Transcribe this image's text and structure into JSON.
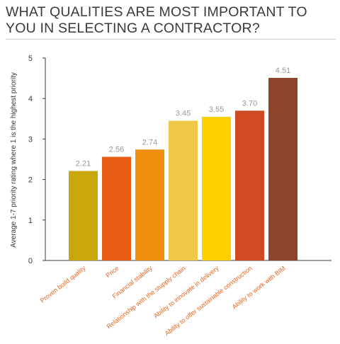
{
  "chart_data": {
    "type": "bar",
    "title": "WHAT QUALITIES ARE MOST IMPORTANT TO YOU IN SELECTING A CONTRACTOR?",
    "ylabel": "Average 1-7 priority rating where 1 is the highest priority",
    "xlabel": "",
    "ylim": [
      0,
      5
    ],
    "yticks": [
      0,
      1,
      2,
      3,
      4,
      5
    ],
    "grid": false,
    "categories": [
      "Proven build quality",
      "Price",
      "Financial stability",
      "Relationship with the stupply chain",
      "Ability to innovate in delivery",
      "Ability to offer sustainable construction",
      "Ability to work with BIM"
    ],
    "values": [
      2.21,
      2.56,
      2.74,
      3.45,
      3.55,
      3.7,
      4.51
    ],
    "value_labels": [
      "2.21",
      "2.56",
      "2.74",
      "3.45",
      "3.55",
      "3.70",
      "4.51"
    ],
    "colors": [
      "#c8a60c",
      "#e65c12",
      "#ef8f0d",
      "#efc84a",
      "#fed000",
      "#cf4a22",
      "#8e432c"
    ],
    "category_label_color": "#e8631b",
    "axis_color": "#3a3a3a",
    "value_label_color": "#9a9a9a"
  }
}
